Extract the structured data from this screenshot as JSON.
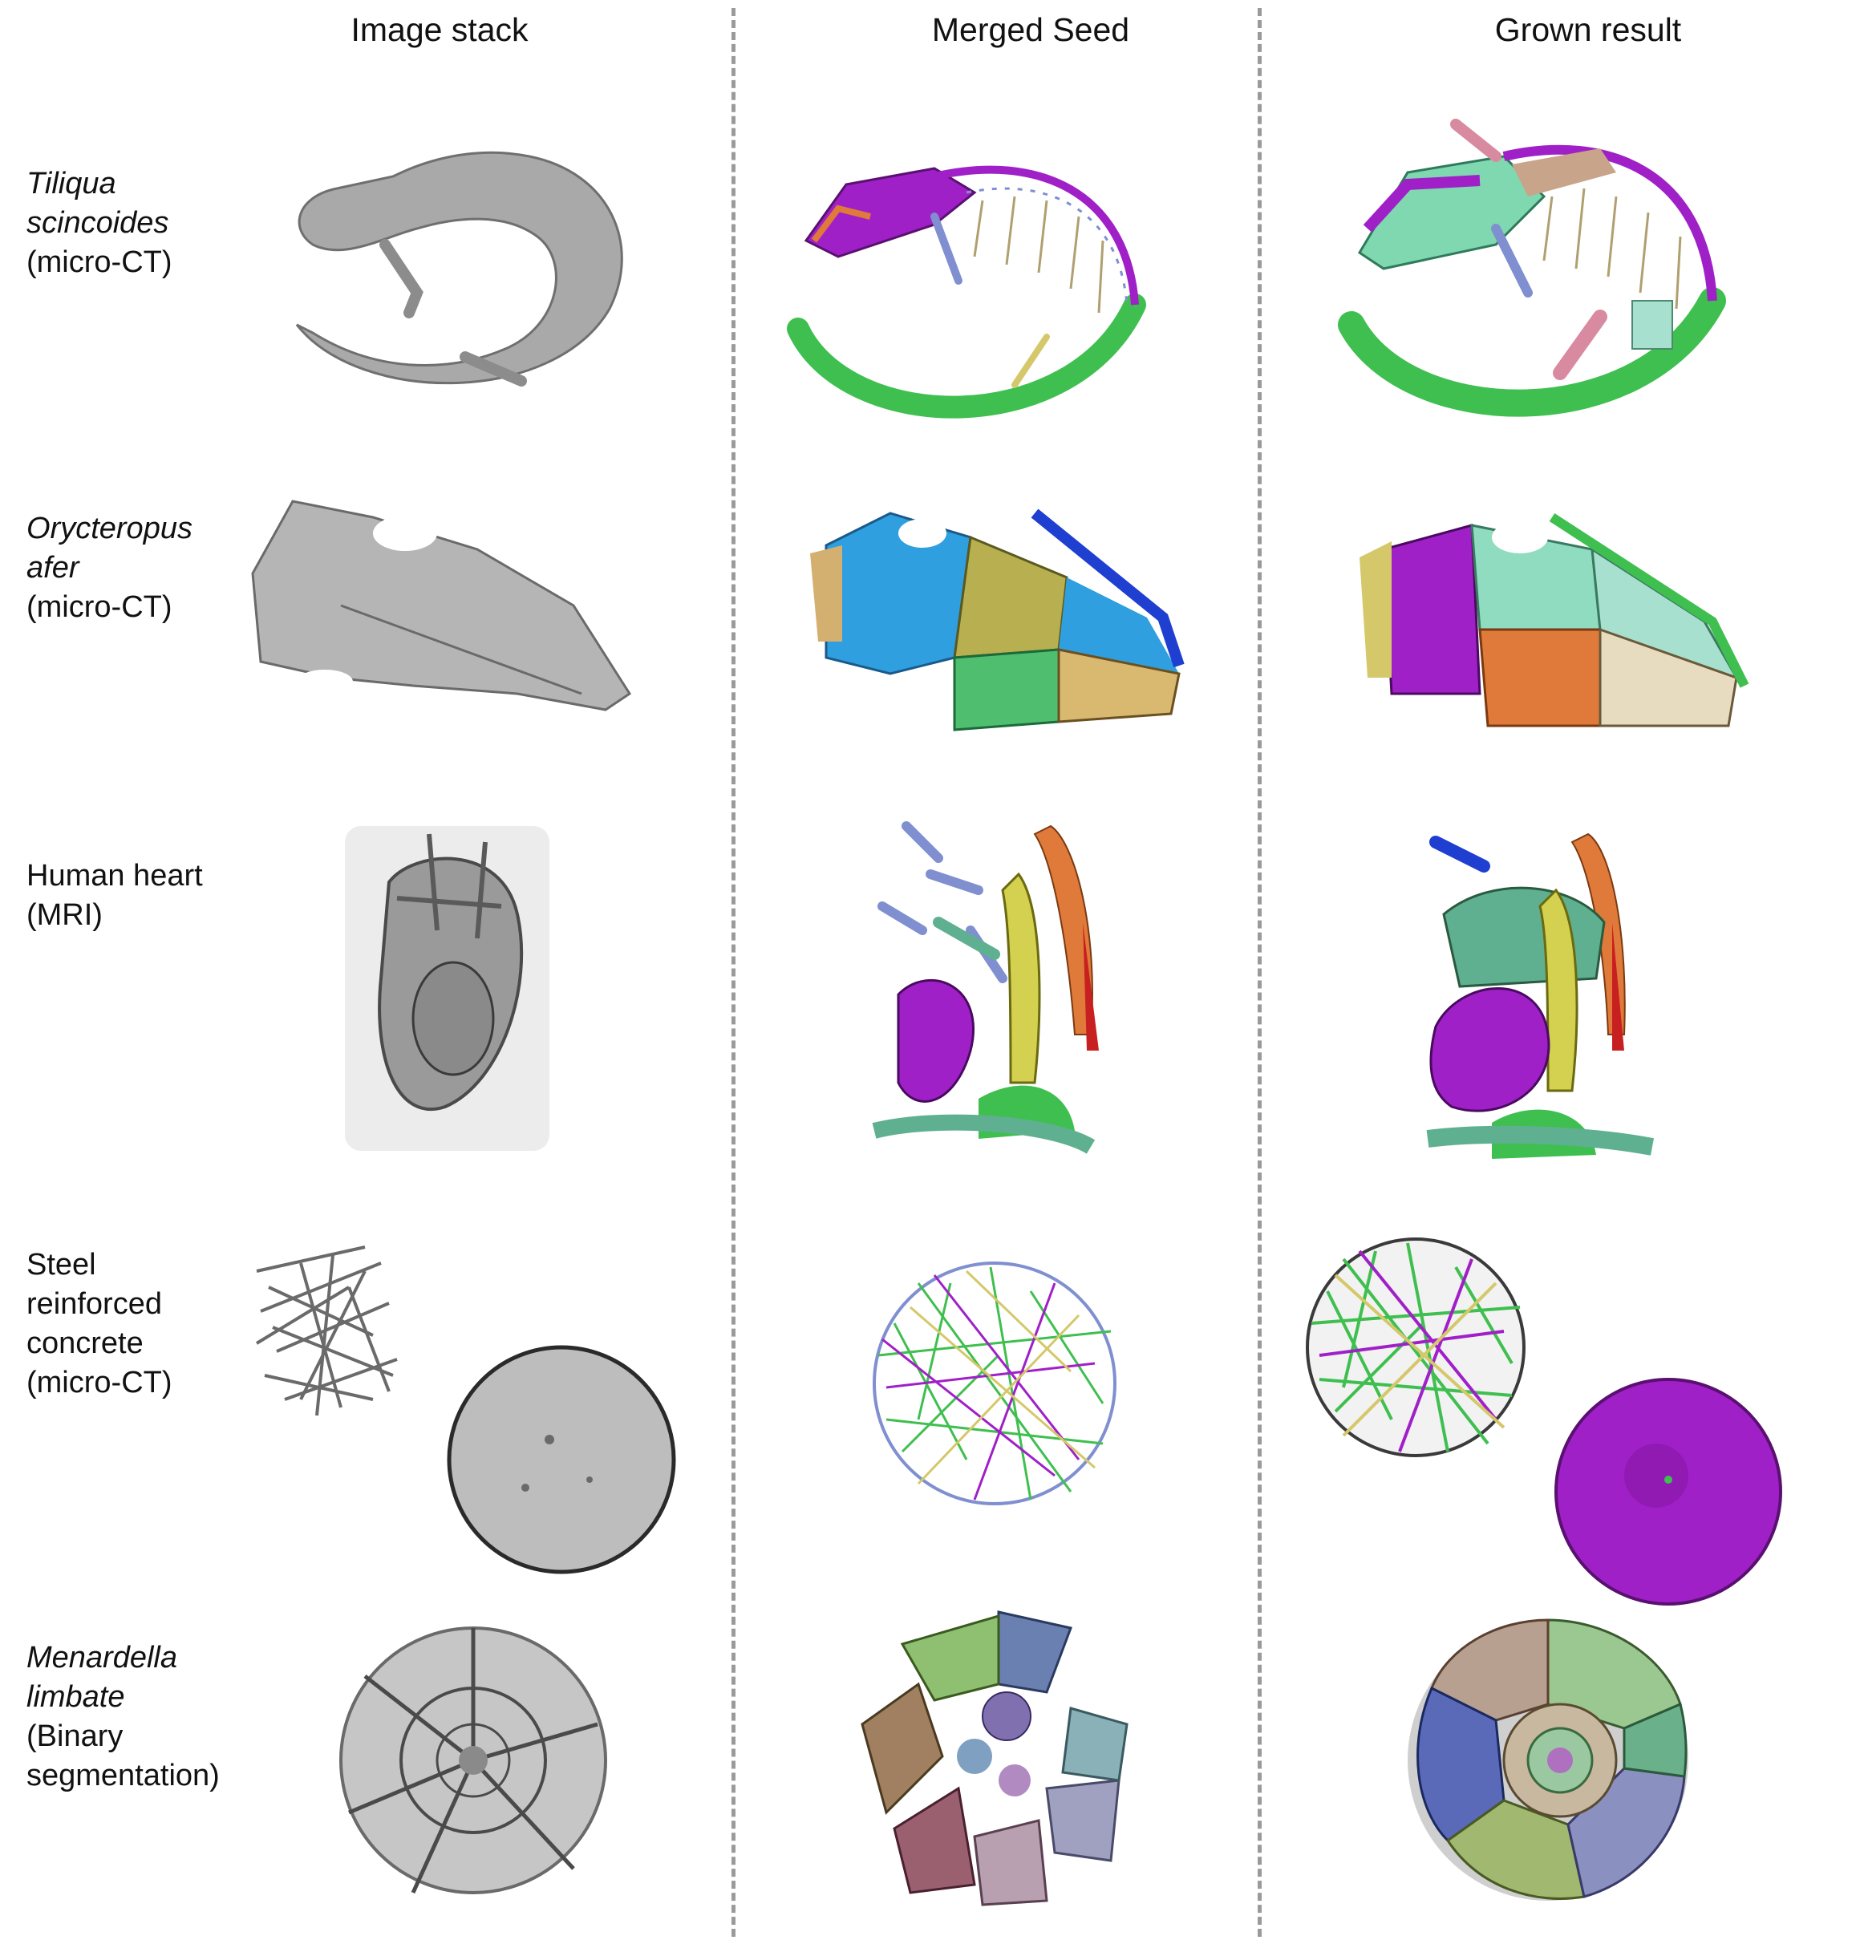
{
  "columns": {
    "image_stack": "Image stack",
    "merged_seed": "Merged Seed",
    "grown_result": "Grown result"
  },
  "rows": [
    {
      "name_lines": [
        "Tiliqua",
        "scincoides"
      ],
      "name_italic": true,
      "plain_lines": [
        "(micro-CT)"
      ]
    },
    {
      "name_lines": [
        "Orycteropus",
        "afer"
      ],
      "name_italic": true,
      "plain_lines": [
        "(micro-CT)"
      ]
    },
    {
      "name_lines": [
        "Human heart"
      ],
      "name_italic": false,
      "plain_lines": [
        "(MRI)"
      ]
    },
    {
      "name_lines": [
        "Steel",
        "reinforced",
        "concrete"
      ],
      "name_italic": false,
      "plain_lines": [
        "(micro-CT)"
      ]
    },
    {
      "name_lines": [
        "Menardella",
        "limbate"
      ],
      "name_italic": true,
      "plain_lines": [
        "(Binary",
        "segmentation)"
      ]
    }
  ],
  "colors": {
    "divider": "#9a9a9a",
    "greyscale": "#a9a9a9",
    "seed_palette": [
      "#a020c8",
      "#3fbf4f",
      "#2f9fe0",
      "#d4c86a",
      "#e07a3a",
      "#7f8fd0",
      "#1f3fd0",
      "#c82020"
    ]
  }
}
